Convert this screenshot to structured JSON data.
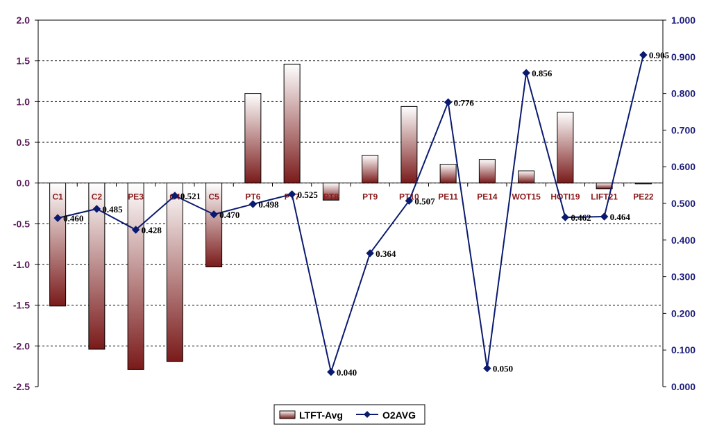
{
  "chart_data": {
    "type": "bar+line",
    "categories": [
      "C1",
      "C2",
      "PE3",
      "C4",
      "C5",
      "PT6",
      "PT7",
      "PT8",
      "PT9",
      "PT10",
      "PE11",
      "PE14",
      "WOT15",
      "HOTI19",
      "LIFT21",
      "PE22"
    ],
    "series": [
      {
        "name": "LTFT-Avg",
        "type": "bar",
        "axis": "left",
        "values": [
          -1.51,
          -2.04,
          -2.29,
          -2.19,
          -1.03,
          1.1,
          1.46,
          -0.21,
          0.34,
          0.94,
          0.23,
          0.29,
          0.15,
          0.87,
          -0.07,
          -0.01
        ]
      },
      {
        "name": "O2AVG",
        "type": "line",
        "axis": "right",
        "values": [
          0.46,
          0.485,
          0.428,
          0.521,
          0.47,
          0.498,
          0.525,
          0.04,
          0.364,
          0.507,
          0.776,
          0.05,
          0.856,
          0.462,
          0.464,
          0.905
        ],
        "labels": [
          "0.460",
          "0.485",
          "0.428",
          "0.521",
          "0.470",
          "0.498",
          "0.525",
          "0.040",
          "0.364",
          "0.507",
          "0.776",
          "0.050",
          "0.856",
          "0.462",
          "0.464",
          "0.905"
        ]
      }
    ],
    "left_axis": {
      "ylim": [
        -2.5,
        2.0
      ],
      "ticks": [
        2.0,
        1.5,
        1.0,
        0.5,
        0.0,
        -0.5,
        -1.0,
        -1.5,
        -2.0,
        -2.5
      ],
      "tick_labels": [
        "2.0",
        "1.5",
        "1.0",
        "0.5",
        "0.0",
        "-0.5",
        "-1.0",
        "-1.5",
        "-2.0",
        "-2.5"
      ]
    },
    "right_axis": {
      "ylim": [
        0.0,
        1.0
      ],
      "ticks": [
        1.0,
        0.9,
        0.8,
        0.7,
        0.6,
        0.5,
        0.4,
        0.3,
        0.2,
        0.1,
        0.0
      ],
      "tick_labels": [
        "1.000",
        "0.900",
        "0.800",
        "0.700",
        "0.600",
        "0.500",
        "0.400",
        "0.300",
        "0.200",
        "0.100",
        "0.000"
      ]
    },
    "grid": true,
    "legend_position": "bottom-center",
    "colors": {
      "bar_top": "#ffffff",
      "bar_bottom": "#7a1a1a",
      "line": "#0a1a6e",
      "marker": "#0a1a6e",
      "left_ticks": "#5a1a5a",
      "right_ticks": "#1a1a7a",
      "category_labels": "#8b1a1a"
    }
  }
}
